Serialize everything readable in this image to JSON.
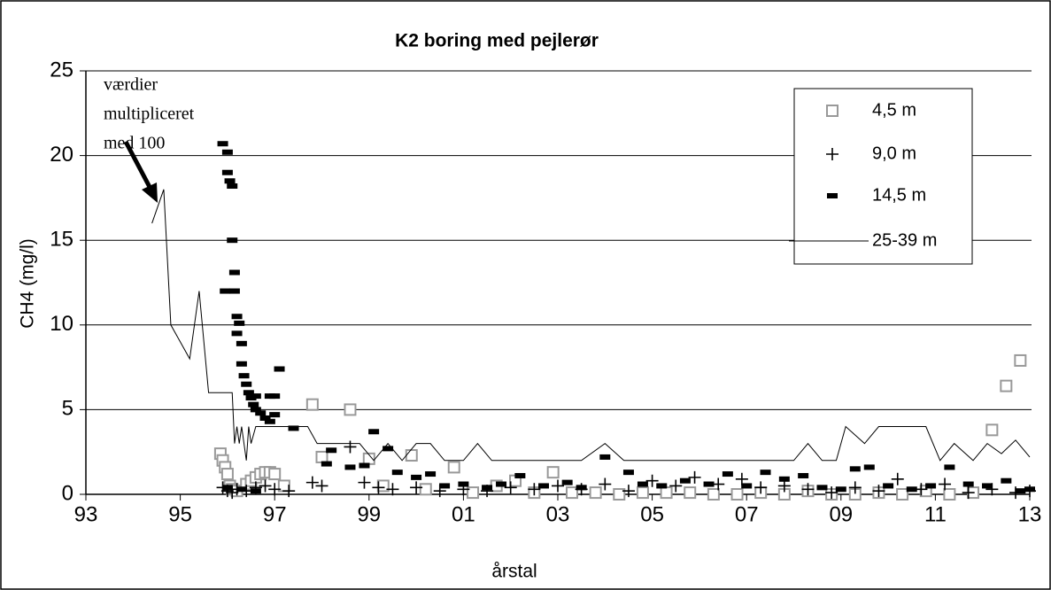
{
  "chart_data": {
    "type": "scatter",
    "title": "K2 boring med pejlerør",
    "xlabel": "årstal",
    "ylabel": "CH4 (mg/l)",
    "annotation": {
      "lines": [
        "værdier",
        "multipliceret",
        "med 100"
      ]
    },
    "xlim": [
      93,
      113
    ],
    "xticks": [
      93,
      95,
      97,
      99,
      {
        "value": 101,
        "label": "01"
      },
      {
        "value": 103,
        "label": "03"
      },
      {
        "value": 105,
        "label": "05"
      },
      {
        "value": 107,
        "label": "07"
      },
      {
        "value": 109,
        "label": "09"
      },
      {
        "value": 111,
        "label": "11"
      },
      {
        "value": 113,
        "label": "13"
      }
    ],
    "ylim": [
      0,
      25
    ],
    "yticks": [
      0,
      5,
      10,
      15,
      20,
      25
    ],
    "grid": true,
    "legend": "upper right",
    "series": [
      {
        "name": "4,5 m",
        "marker": "square",
        "color": "#999999",
        "x": [
          95.85,
          95.9,
          95.95,
          96.0,
          96.05,
          96.1,
          96.2,
          96.4,
          96.5,
          96.6,
          96.7,
          96.8,
          96.9,
          97.0,
          97.2,
          97.8,
          98.0,
          98.6,
          99.0,
          99.3,
          99.9,
          100.2,
          100.8,
          101.2,
          101.7,
          102.1,
          102.5,
          102.9,
          103.3,
          103.8,
          104.3,
          104.8,
          105.3,
          105.8,
          106.3,
          106.8,
          107.3,
          107.8,
          108.3,
          108.8,
          109.3,
          109.8,
          110.3,
          110.8,
          111.3,
          111.8,
          112.2,
          112.5,
          112.8
        ],
        "values": [
          2.4,
          2.0,
          1.6,
          1.2,
          0.5,
          0.3,
          0.2,
          0.6,
          0.8,
          1.0,
          1.2,
          1.3,
          1.3,
          1.2,
          0.5,
          5.3,
          2.2,
          5.0,
          2.1,
          0.5,
          2.3,
          0.3,
          1.6,
          0.1,
          0.5,
          0.8,
          0.1,
          1.3,
          0.1,
          0.1,
          0.0,
          0.1,
          0.1,
          0.1,
          0.0,
          0.0,
          0.1,
          0.0,
          0.2,
          0.0,
          0.0,
          0.1,
          0.0,
          0.2,
          0.0,
          0.1,
          3.8,
          6.4,
          7.9
        ]
      },
      {
        "name": "9,0 m",
        "marker": "plus",
        "color": "#000000",
        "x": [
          95.9,
          96.0,
          96.1,
          96.2,
          96.4,
          96.6,
          96.8,
          97.0,
          97.3,
          97.8,
          98.0,
          98.6,
          98.9,
          99.2,
          99.5,
          100.0,
          100.5,
          101.0,
          101.5,
          102.0,
          102.5,
          103.0,
          103.5,
          104.0,
          104.5,
          105.0,
          105.5,
          105.9,
          106.4,
          106.9,
          107.3,
          107.8,
          108.3,
          108.8,
          109.3,
          109.8,
          110.2,
          110.7,
          111.2,
          111.7,
          112.2,
          112.7,
          113.0
        ],
        "values": [
          0.4,
          0.2,
          0.1,
          0.3,
          0.2,
          0.4,
          0.5,
          0.3,
          0.2,
          0.7,
          0.5,
          2.8,
          0.7,
          0.4,
          0.3,
          0.4,
          0.2,
          0.3,
          0.2,
          0.4,
          0.3,
          0.5,
          0.3,
          0.6,
          0.2,
          0.8,
          0.5,
          1.0,
          0.6,
          0.9,
          0.4,
          0.5,
          0.3,
          0.1,
          0.4,
          0.2,
          0.9,
          0.3,
          0.6,
          0.1,
          0.3,
          0.1,
          0.2
        ]
      },
      {
        "name": "14,5 m",
        "marker": "dash",
        "color": "#000000",
        "x": [
          95.9,
          96.0,
          96.0,
          96.05,
          96.1,
          96.1,
          95.95,
          96.15,
          96.15,
          96.2,
          96.25,
          96.2,
          96.3,
          96.3,
          96.35,
          96.4,
          96.45,
          96.5,
          96.55,
          96.6,
          96.7,
          96.8,
          96.9,
          96.9,
          97.0,
          97.0,
          96.6,
          97.1,
          97.4,
          98.1,
          98.2,
          98.6,
          98.9,
          99.1,
          99.4,
          99.6,
          100.0,
          100.3,
          100.6,
          101.0,
          101.5,
          101.8,
          102.2,
          102.7,
          103.2,
          103.5,
          104.0,
          104.5,
          104.8,
          105.2,
          105.7,
          106.2,
          106.6,
          107.0,
          107.4,
          107.8,
          108.2,
          108.6,
          109.0,
          109.3,
          109.6,
          110.0,
          110.5,
          110.9,
          111.3,
          111.7,
          112.1,
          112.5,
          112.8,
          113.0,
          96.0,
          96.3,
          96.6
        ],
        "values": [
          20.7,
          20.2,
          19.0,
          18.5,
          18.2,
          15.0,
          12.0,
          13.1,
          12.0,
          10.5,
          10.1,
          9.5,
          8.9,
          7.7,
          7.0,
          6.5,
          6.0,
          5.7,
          5.3,
          5.0,
          4.8,
          4.5,
          4.3,
          5.8,
          4.7,
          5.8,
          5.8,
          7.4,
          3.9,
          1.8,
          2.6,
          1.6,
          1.7,
          3.7,
          2.7,
          1.3,
          1.0,
          1.2,
          0.5,
          0.6,
          0.4,
          0.6,
          1.1,
          0.5,
          0.7,
          0.4,
          2.2,
          1.3,
          0.6,
          0.5,
          0.8,
          0.6,
          1.2,
          0.5,
          1.3,
          0.9,
          1.1,
          0.4,
          0.3,
          1.5,
          1.6,
          0.5,
          0.3,
          0.5,
          1.6,
          0.6,
          0.5,
          0.8,
          0.2,
          0.3,
          0.4,
          0.3,
          0.2
        ]
      },
      {
        "name": "25-39 m",
        "marker": "line",
        "color": "#000000",
        "x": [
          94.4,
          94.65,
          94.8,
          95.2,
          95.4,
          95.6,
          96.1,
          96.15,
          96.2,
          96.25,
          96.3,
          96.35,
          96.4,
          96.45,
          96.5,
          96.6,
          97.0,
          97.7,
          97.9,
          98.8,
          99.1,
          99.4,
          99.7,
          100.0,
          100.3,
          100.6,
          101.0,
          101.3,
          101.6,
          103.5,
          104.0,
          104.4,
          108.0,
          108.3,
          108.6,
          108.9,
          109.1,
          109.5,
          109.8,
          110.8,
          111.1,
          111.4,
          111.8,
          112.1,
          112.4,
          112.7,
          113.0
        ],
        "values": [
          16,
          18,
          10,
          8,
          12,
          6,
          6,
          3,
          4,
          3,
          4,
          3,
          2,
          4,
          3,
          4,
          4,
          4,
          3,
          3,
          2,
          3,
          2,
          3,
          3,
          2,
          2,
          3,
          2,
          2,
          3,
          2,
          2,
          3,
          2,
          2,
          4,
          3,
          4,
          4,
          2,
          3,
          2,
          3,
          2.4,
          3.2,
          2.2
        ]
      }
    ]
  }
}
